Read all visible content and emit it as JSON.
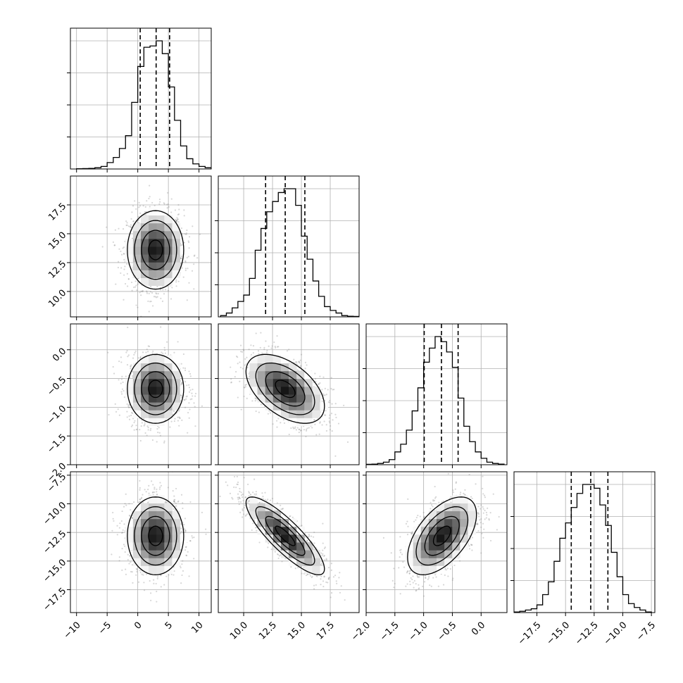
{
  "chart_data": {
    "type": "corner",
    "title": "",
    "parameters": [
      {
        "index": 0,
        "mean": 2.9,
        "sd": 2.3,
        "range": [
          -11,
          12
        ],
        "ticks": [
          -10,
          -5,
          0,
          5,
          10
        ],
        "tick_labels": [
          "−10",
          "−5",
          "0",
          "5",
          "10"
        ],
        "quantiles": [
          0.4,
          3.0,
          5.2
        ]
      },
      {
        "index": 1,
        "mean": 13.6,
        "sd": 1.7,
        "range": [
          7.8,
          20.0
        ],
        "ticks": [
          10.0,
          12.5,
          15.0,
          17.5
        ],
        "tick_labels": [
          "10.0",
          "12.5",
          "15.0",
          "17.5"
        ],
        "quantiles": [
          11.9,
          13.6,
          15.3
        ]
      },
      {
        "index": 2,
        "mean": -0.68,
        "sd": 0.3,
        "range": [
          -2.0,
          0.45
        ],
        "ticks": [
          -2.0,
          -1.5,
          -1.0,
          -0.5,
          0.0
        ],
        "tick_labels": [
          "−2.0",
          "−1.5",
          "−1.0",
          "−0.5",
          "0.0"
        ],
        "quantiles": [
          -0.99,
          -0.69,
          -0.4
        ]
      },
      {
        "index": 3,
        "mean": -12.8,
        "sd": 1.7,
        "range": [
          -19.5,
          -7.2
        ],
        "ticks": [
          -17.5,
          -15.0,
          -12.5,
          -10.0,
          -7.5
        ],
        "tick_labels": [
          "−17.5",
          "−15.0",
          "−12.5",
          "−10.0",
          "−7.5"
        ],
        "quantiles": [
          -14.5,
          -12.8,
          -11.3
        ]
      }
    ],
    "correlations": [
      {
        "pair": [
          1,
          0
        ],
        "rho": 0.0
      },
      {
        "pair": [
          2,
          0
        ],
        "rho": 0.0
      },
      {
        "pair": [
          2,
          1
        ],
        "rho": -0.5
      },
      {
        "pair": [
          3,
          0
        ],
        "rho": 0.0
      },
      {
        "pair": [
          3,
          1
        ],
        "rho": -0.85
      },
      {
        "pair": [
          3,
          2
        ],
        "rho": 0.55
      }
    ],
    "histograms": [
      {
        "param": 0,
        "bin_edges": [
          -10,
          -9,
          -8,
          -7,
          -6,
          -5,
          -4,
          -3,
          -2,
          -1,
          0,
          1,
          2,
          3,
          4,
          5,
          6,
          7,
          8,
          9,
          10,
          11,
          12
        ],
        "counts": [
          0.2,
          0.3,
          0.5,
          1,
          2,
          5,
          9,
          16,
          26,
          52,
          80,
          95,
          96,
          100,
          90,
          64,
          38,
          18,
          8,
          4,
          2,
          1
        ]
      },
      {
        "param": 1,
        "bin_edges": [
          8.0,
          8.5,
          9.0,
          9.5,
          10.0,
          10.5,
          11.0,
          11.5,
          12.0,
          12.5,
          13.0,
          13.5,
          14.0,
          14.5,
          15.0,
          15.5,
          16.0,
          16.5,
          17.0,
          17.5,
          18.0,
          18.5,
          19.0,
          19.5,
          20.0
        ],
        "counts": [
          1,
          3,
          7,
          12,
          17,
          30,
          52,
          69,
          82,
          90,
          97,
          100,
          100,
          87,
          63,
          45,
          28,
          16,
          8,
          5,
          3,
          1,
          0.5,
          0.3
        ]
      },
      {
        "param": 2,
        "bin_edges": [
          -2.0,
          -1.9,
          -1.8,
          -1.7,
          -1.6,
          -1.5,
          -1.4,
          -1.3,
          -1.2,
          -1.1,
          -1.0,
          -0.9,
          -0.8,
          -0.7,
          -0.6,
          -0.5,
          -0.4,
          -0.3,
          -0.2,
          -0.1,
          0.0,
          0.1,
          0.2,
          0.3,
          0.4
        ],
        "counts": [
          0.3,
          0.5,
          1,
          2,
          4,
          10,
          16,
          27,
          42,
          60,
          80,
          91,
          100,
          96,
          88,
          76,
          52,
          30,
          18,
          10,
          5,
          2,
          1,
          0.5
        ]
      },
      {
        "param": 3,
        "bin_edges": [
          -19.5,
          -19.0,
          -18.5,
          -18.0,
          -17.5,
          -17.0,
          -16.5,
          -16.0,
          -15.5,
          -15.0,
          -14.5,
          -14.0,
          -13.5,
          -13.0,
          -12.5,
          -12.0,
          -11.5,
          -11.0,
          -10.5,
          -10.0,
          -9.5,
          -9.0,
          -8.5,
          -8.0,
          -7.5
        ],
        "counts": [
          0.5,
          1,
          2,
          3,
          6,
          14,
          24,
          40,
          58,
          70,
          82,
          93,
          100,
          100,
          97,
          84,
          68,
          47,
          28,
          14,
          7,
          4,
          2,
          0.5
        ]
      }
    ],
    "contour_levels_sigma": [
      0.5,
      1.0,
      1.5,
      2.0
    ],
    "grid": true,
    "legend": "none"
  }
}
